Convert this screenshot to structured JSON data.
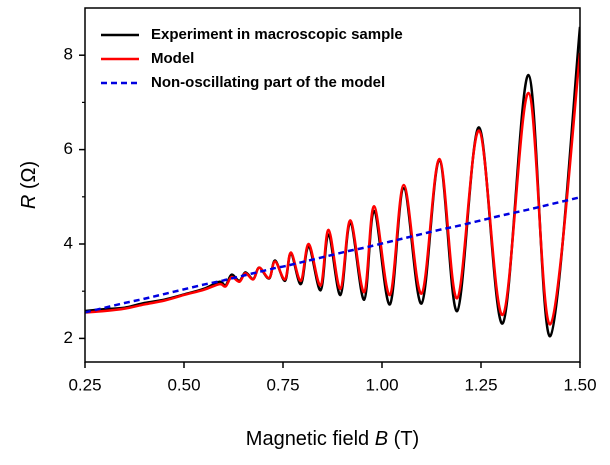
{
  "chart_data": {
    "type": "line",
    "xlabel": [
      "Magnetic field",
      "B",
      "(T)"
    ],
    "ylabel": [
      "R",
      "(Ω)"
    ],
    "x": [
      0.25,
      0.3,
      0.35,
      0.4,
      0.45,
      0.5,
      0.55,
      0.59,
      0.605,
      0.62,
      0.64,
      0.655,
      0.675,
      0.69,
      0.715,
      0.73,
      0.755,
      0.77,
      0.795,
      0.815,
      0.845,
      0.865,
      0.895,
      0.92,
      0.955,
      0.98,
      1.02,
      1.055,
      1.1,
      1.145,
      1.19,
      1.245,
      1.305,
      1.37,
      1.425,
      1.5
    ],
    "series": [
      {
        "name": "Experiment in macroscopic sample",
        "color": "#000000",
        "dash": false,
        "values": [
          2.58,
          2.62,
          2.65,
          2.75,
          2.82,
          2.93,
          3.05,
          3.2,
          3.12,
          3.35,
          3.22,
          3.4,
          3.26,
          3.5,
          3.27,
          3.65,
          3.22,
          3.8,
          3.15,
          3.95,
          3.02,
          4.2,
          2.92,
          4.45,
          2.82,
          4.7,
          2.72,
          5.18,
          2.74,
          5.78,
          2.58,
          6.47,
          2.32,
          7.58,
          2.05,
          8.6
        ]
      },
      {
        "name": "Model",
        "color": "#ff0000",
        "dash": false,
        "values": [
          2.55,
          2.58,
          2.63,
          2.72,
          2.8,
          2.92,
          3.03,
          3.15,
          3.1,
          3.3,
          3.2,
          3.38,
          3.25,
          3.5,
          3.28,
          3.63,
          3.25,
          3.82,
          3.22,
          4.0,
          3.12,
          4.3,
          3.05,
          4.5,
          2.98,
          4.8,
          2.92,
          5.25,
          2.95,
          5.8,
          2.85,
          6.4,
          2.5,
          7.2,
          2.3,
          8.05
        ]
      },
      {
        "name": "Non-oscillating part of the model",
        "color": "#0000e0",
        "dash": true,
        "values": [
          2.55,
          2.65,
          2.75,
          2.84,
          2.94,
          3.04,
          3.14,
          3.21,
          3.24,
          3.27,
          3.31,
          3.34,
          3.38,
          3.41,
          3.46,
          3.49,
          3.53,
          3.56,
          3.61,
          3.65,
          3.71,
          3.75,
          3.81,
          3.86,
          3.92,
          3.97,
          4.05,
          4.12,
          4.21,
          4.3,
          4.38,
          4.49,
          4.61,
          4.73,
          4.84,
          4.99
        ]
      }
    ],
    "xlim": [
      0.25,
      1.5
    ],
    "xticks": [
      0.25,
      {
        "value": 0.5,
        "label": "0.50"
      },
      0.75,
      {
        "value": 1.0,
        "label": "1.00"
      },
      1.25,
      {
        "value": 1.5,
        "label": "1.50"
      }
    ],
    "ylim": [
      1.5,
      9
    ],
    "yticks": [
      2,
      4,
      6,
      8
    ],
    "yminor": [
      3,
      5,
      7
    ],
    "legend": "upper left"
  }
}
